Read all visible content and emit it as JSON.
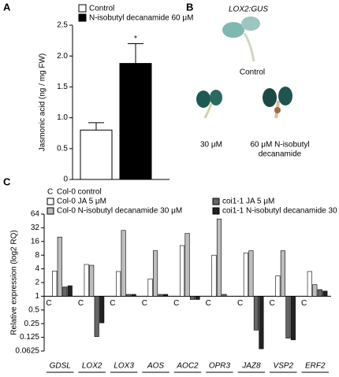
{
  "panel_labels": [
    "A",
    "B",
    "C"
  ],
  "image_panel": {
    "title": "LOX2:GUS",
    "labels": [
      "Control",
      "30 μM",
      "60 μM N-isobutyl",
      "decanamide"
    ]
  },
  "chart_data": [
    {
      "type": "bar",
      "ylabel": "Jasmonic acid (ng / mg FW)",
      "categories": [
        null
      ],
      "series": [
        {
          "name": "Control",
          "color": "#ffffff",
          "values": [
            0.8
          ],
          "errors": [
            0.12
          ]
        },
        {
          "name": "N-isobutyl decanamide 60 μM",
          "color": "#000000",
          "values": [
            1.88
          ],
          "errors": [
            0.32
          ]
        }
      ],
      "annotations": [
        {
          "text": "*",
          "series": 1
        }
      ],
      "ylim": [
        0,
        2.5
      ],
      "yticks": [
        0,
        0.5,
        {
          "value": 1,
          "label": "1.0"
        },
        1.5,
        {
          "value": 2,
          "label": "2.0"
        },
        2.5
      ]
    },
    {
      "type": "bar",
      "ylabel": "Relative expression (log2 RQ)",
      "log_scale": true,
      "log_base": 2,
      "categories": [
        "GDSL",
        "LOX2",
        "LOX3",
        "AOS",
        "AOC2",
        "OPR3",
        "JAZ8",
        "VSP2",
        "ERF2"
      ],
      "series": [
        {
          "name": "Col-0 control",
          "marker": "C",
          "color": "#000000",
          "values": [
            1,
            1,
            1,
            1,
            1,
            1,
            1,
            1,
            1
          ]
        },
        {
          "name": "Col-0 JA 5 μM",
          "color": "#ffffff",
          "values": [
            3.6,
            5,
            3.5,
            2.4,
            13,
            8,
            9,
            2.8,
            3.5
          ]
        },
        {
          "name": "Col-0 N-isobutyl decanamide 30 μM",
          "color": "#bdbdbd",
          "values": [
            20,
            4.8,
            28,
            10,
            24,
            50,
            10,
            10,
            1.8
          ]
        },
        {
          "name": "coi1-1 JA 5 μM",
          "color": "#666666",
          "values": [
            1.6,
            0.13,
            1.1,
            1.1,
            0.85,
            1.1,
            0.18,
            0.12,
            1.4
          ]
        },
        {
          "name": "coi1-1 N-isobutyl decanamide 30 μM",
          "color": "#222222",
          "values": [
            1.7,
            0.26,
            1.1,
            1.1,
            0.85,
            1,
            0.07,
            0.11,
            1.3
          ]
        }
      ],
      "ylim": [
        0.0625,
        64
      ],
      "yticks": [
        0.0625,
        0.125,
        0.25,
        0.5,
        1,
        2,
        4,
        8,
        16,
        32,
        64
      ]
    }
  ]
}
